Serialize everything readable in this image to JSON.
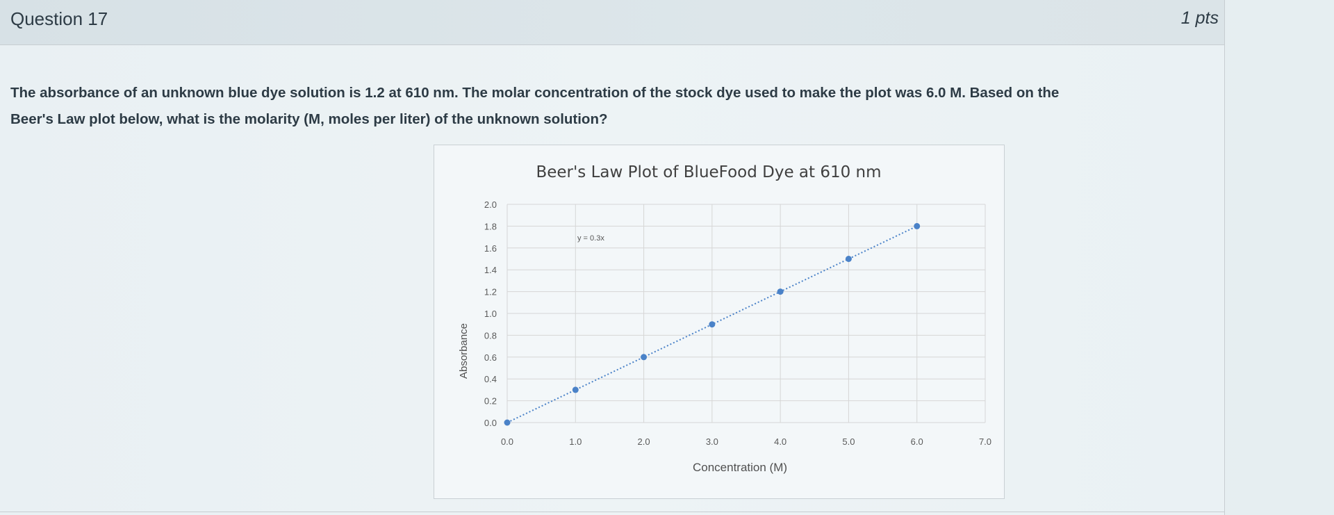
{
  "question": {
    "title": "Question 17",
    "points": "1 pts",
    "text_line1": "The absorbance of an unknown blue dye solution is 1.2 at 610 nm. The molar concentration of the stock dye used to make the plot was 6.0 M. Based on the",
    "text_line2": "Beer's Law plot below, what is the molarity (M, moles per liter) of the unknown solution?"
  },
  "chart_data": {
    "type": "scatter",
    "title": "Beer's Law Plot of BlueFood Dye at 610 nm",
    "xlabel": "Concentration (M)",
    "ylabel": "Absorbance",
    "xlim": [
      0,
      7
    ],
    "ylim": [
      0,
      2
    ],
    "x_ticks": [
      "0.0",
      "1.0",
      "2.0",
      "3.0",
      "4.0",
      "5.0",
      "6.0",
      "7.0"
    ],
    "y_ticks": [
      "0.0",
      "0.2",
      "0.4",
      "0.6",
      "0.8",
      "1.0",
      "1.2",
      "1.4",
      "1.6",
      "1.8",
      "2.0"
    ],
    "x": [
      0.0,
      1.0,
      2.0,
      3.0,
      4.0,
      5.0,
      6.0
    ],
    "y": [
      0.0,
      0.3,
      0.6,
      0.9,
      1.2,
      1.5,
      1.8
    ],
    "trendline": {
      "type": "linear",
      "slope": 0.3,
      "intercept": 0,
      "style": "dotted"
    },
    "equation_label": "y = 0.3x",
    "grid": true,
    "point_color": "#4a82c8"
  }
}
